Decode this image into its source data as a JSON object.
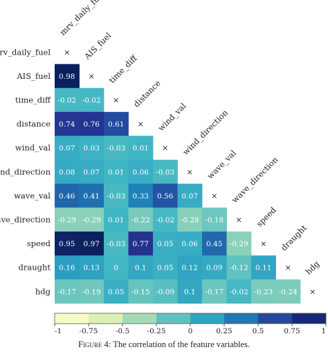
{
  "chart_data": {
    "type": "heatmap",
    "title": "",
    "variables": [
      "mrv_daily_fuel",
      "AIS_fuel",
      "time_diff",
      "distance",
      "wind_val",
      "wind_direction",
      "wave_val",
      "wave_direction",
      "speed",
      "draught",
      "hdg"
    ],
    "matrix": [
      [
        null
      ],
      [
        0.98,
        null
      ],
      [
        -0.02,
        -0.02,
        null
      ],
      [
        0.74,
        0.76,
        0.61,
        null
      ],
      [
        0.07,
        0.03,
        -0.03,
        0.01,
        null
      ],
      [
        0.08,
        0.07,
        0.01,
        0.06,
        -0.03,
        null
      ],
      [
        0.46,
        0.41,
        -0.03,
        0.33,
        0.56,
        0.07,
        null
      ],
      [
        -0.29,
        -0.29,
        0.01,
        -0.22,
        -0.02,
        -0.28,
        -0.18,
        null
      ],
      [
        0.95,
        0.97,
        -0.03,
        0.77,
        0.05,
        0.06,
        0.45,
        -0.29,
        null
      ],
      [
        0.16,
        0.13,
        0,
        0.1,
        0.05,
        0.12,
        0.09,
        -0.12,
        0.11,
        null
      ],
      [
        -0.17,
        -0.19,
        0.05,
        -0.15,
        -0.09,
        0.1,
        -0.17,
        -0.02,
        -0.23,
        -0.24,
        null
      ]
    ],
    "diagonal_marker": "×",
    "colorbar": {
      "range": [
        -1,
        1
      ],
      "ticks": [
        -1,
        -0.75,
        -0.5,
        -0.25,
        0,
        0.25,
        0.5,
        0.75,
        1
      ],
      "tick_labels": [
        "-1",
        "-0.75",
        "-0.5",
        "-0.25",
        "0",
        "0.25",
        "0.5",
        "0.75",
        "1"
      ],
      "colors": [
        "#ffffd9",
        "#edf8b1",
        "#c7e9b4",
        "#7fcdbb",
        "#41b6c4",
        "#1d91c0",
        "#225ea8",
        "#253494",
        "#081d58"
      ]
    },
    "caption": {
      "figure_label": "Figure 4:",
      "text": "The correlation of the feature variables."
    }
  }
}
